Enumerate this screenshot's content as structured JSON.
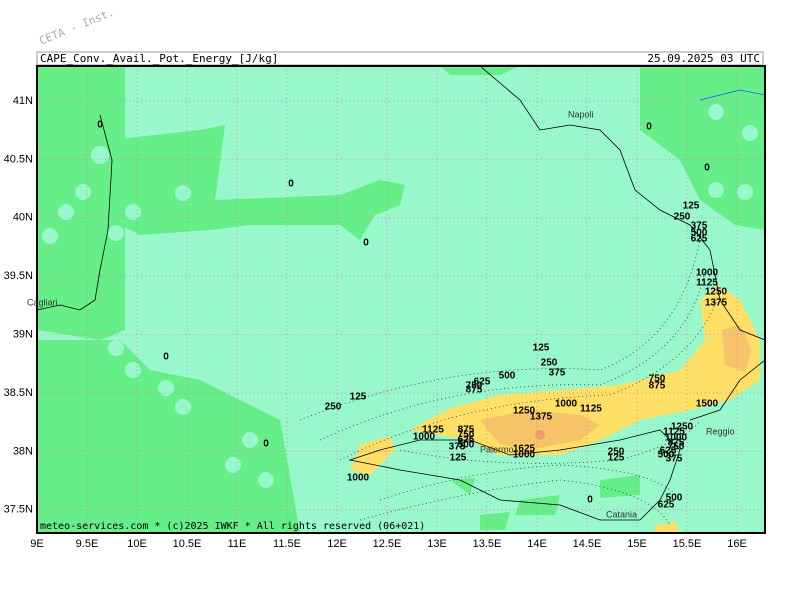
{
  "watermark": "CETA - Inst.",
  "header": {
    "title": "CAPE_Conv._Avail._Pot._Energy_[J/kg]",
    "date": "25.09.2025 03 UTC"
  },
  "footer": "meteo-services.com * (c)2025 IWKF * All rights reserved (06+021)",
  "lon_labels": [
    "9E",
    "9.5E",
    "10E",
    "10.5E",
    "11E",
    "11.5E",
    "12E",
    "12.5E",
    "13E",
    "13.5E",
    "14E",
    "14.5E",
    "15E",
    "15.5E",
    "16E"
  ],
  "lat_labels": [
    "41N",
    "40.5N",
    "40N",
    "39.5N",
    "39N",
    "38.5N",
    "38N",
    "37.5N"
  ],
  "places": [
    "Napoli",
    "Cagliari",
    "Palermo",
    "Reggio",
    "Catania"
  ],
  "contour_labels": [
    "0",
    "0",
    "0",
    "0",
    "0",
    "0",
    "0",
    "0",
    "125",
    "250",
    "375",
    "500",
    "625",
    "1000",
    "1125",
    "1250",
    "1375",
    "125",
    "250",
    "375",
    "500",
    "625",
    "750",
    "875",
    "750",
    "875",
    "125",
    "250",
    "1250",
    "1375",
    "1000",
    "1125",
    "1500",
    "1125",
    "1000",
    "875",
    "750",
    "625",
    "500",
    "375",
    "125",
    "1625",
    "1000",
    "250",
    "125",
    "1250",
    "1125",
    "1000",
    "875",
    "750",
    "625",
    "500",
    "375",
    "1000",
    "500",
    "625"
  ]
}
